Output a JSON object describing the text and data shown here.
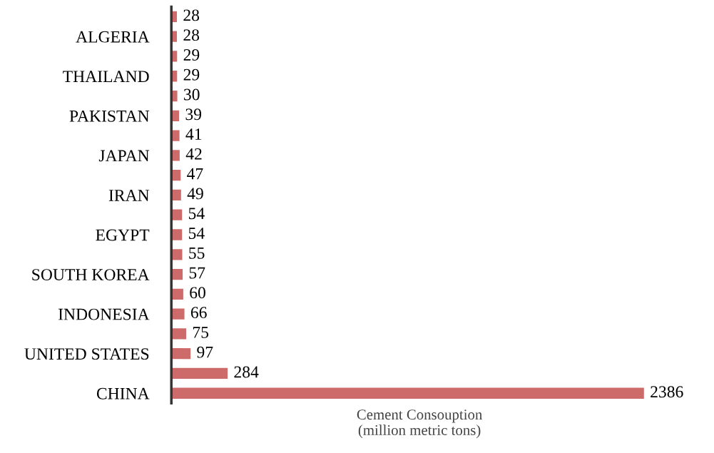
{
  "chart_data": {
    "type": "bar",
    "orientation": "horizontal",
    "xlabel": "Cement Consouption\n(million metric tons)",
    "categories": [
      null,
      "ALGERIA",
      null,
      "THAILAND",
      null,
      "PAKISTAN",
      null,
      "JAPAN",
      null,
      "IRAN",
      null,
      "EGYPT",
      null,
      "SOUTH KOREA",
      null,
      "INDONESIA",
      null,
      "UNITED STATES",
      null,
      "CHINA"
    ],
    "values": [
      28,
      28,
      29,
      29,
      30,
      39,
      41,
      42,
      47,
      49,
      54,
      54,
      55,
      57,
      60,
      66,
      75,
      97,
      284,
      2386
    ],
    "color": "#cd6b6b",
    "data_labels": true,
    "grid": false,
    "legend": false
  }
}
